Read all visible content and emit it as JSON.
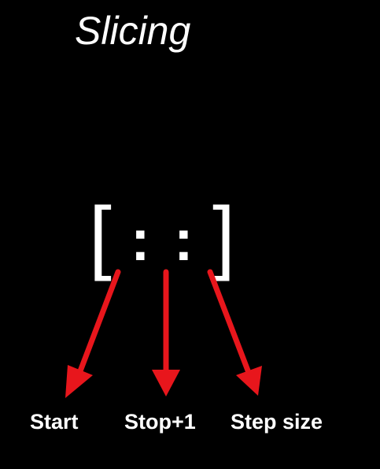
{
  "title": "Slicing",
  "notation": {
    "open_bracket": "[",
    "separator": ":",
    "close_bracket": "]"
  },
  "arrows": [
    {
      "label": "Start"
    },
    {
      "label": "Stop+1"
    },
    {
      "label": "Step size"
    }
  ],
  "colors": {
    "background": "#000000",
    "text": "#ffffff",
    "arrow": "#e8161c"
  }
}
